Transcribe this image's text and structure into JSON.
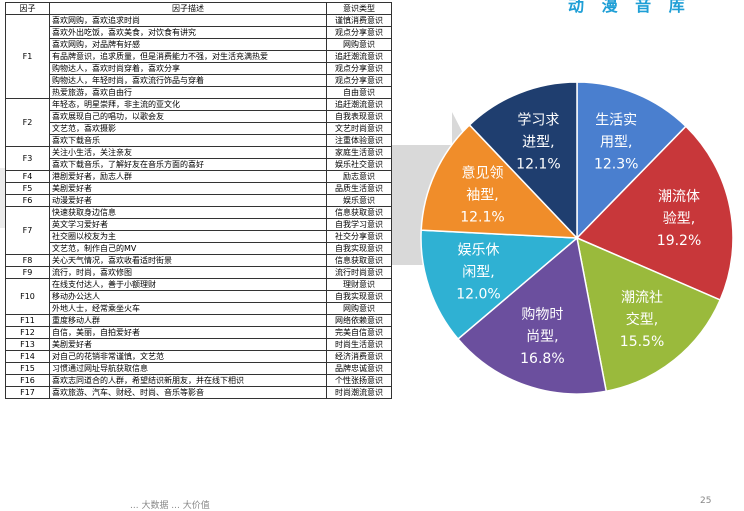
{
  "header": {
    "text": "动 漫 音 库"
  },
  "footer": {
    "left": "... 大数据 ... 大价值",
    "right": "25"
  },
  "table": {
    "headers": [
      "因子",
      "因子描述",
      "意识类型"
    ],
    "groups": [
      {
        "factor": "F1",
        "rows": [
          {
            "desc": "喜欢网购，喜欢追求时尚",
            "type": "谨慎消费意识"
          },
          {
            "desc": "喜欢外出吃饭，喜欢美食，对饮食有讲究",
            "type": "观点分享意识"
          },
          {
            "desc": "喜欢网购，对品牌有好感",
            "type": "网购意识"
          },
          {
            "desc": "有品牌意识，追求质量，但是消费能力不强，对生活充满热爱",
            "type": "追赶潮流意识"
          },
          {
            "desc": "购物达人，喜欢时尚穿着，喜欢分享",
            "type": "观点分享意识"
          },
          {
            "desc": "购物达人，年轻时尚，喜欢流行饰品与穿着",
            "type": "观点分享意识"
          },
          {
            "desc": "热爱旅游，喜欢自由行",
            "type": "自由意识"
          }
        ]
      },
      {
        "factor": "F2",
        "rows": [
          {
            "desc": "年轻态，明星崇拜，非主流的亚文化",
            "type": "追赶潮流意识"
          },
          {
            "desc": "喜欢展现自己的唱功，以歌会友",
            "type": "自我表现意识"
          },
          {
            "desc": "文艺范，喜欢摄影",
            "type": "文艺时尚意识"
          },
          {
            "desc": "喜欢下载音乐",
            "type": "注重体验意识"
          }
        ]
      },
      {
        "factor": "F3",
        "rows": [
          {
            "desc": "关注小生活，关注亲友",
            "type": "家庭生活意识"
          },
          {
            "desc": "喜欢下载音乐，了解好友在音乐方面的喜好",
            "type": "娱乐社交意识"
          }
        ]
      },
      {
        "factor": "F4",
        "rows": [
          {
            "desc": "港剧爱好者，励志人群",
            "type": "励志意识"
          }
        ]
      },
      {
        "factor": "F5",
        "rows": [
          {
            "desc": "美剧爱好者",
            "type": "品质生活意识"
          }
        ]
      },
      {
        "factor": "F6",
        "rows": [
          {
            "desc": "动漫爱好者",
            "type": "娱乐意识"
          }
        ]
      },
      {
        "factor": "F7",
        "rows": [
          {
            "desc": "快速获取身边信息",
            "type": "信息获取意识"
          },
          {
            "desc": "英文学习爱好者",
            "type": "自我学习意识"
          },
          {
            "desc": "社交圈以校友为主",
            "type": "社交分享意识"
          },
          {
            "desc": "文艺范，制作自己的MV",
            "type": "自我实现意识"
          }
        ]
      },
      {
        "factor": "F8",
        "rows": [
          {
            "desc": "关心天气情况，喜欢收看适时街景",
            "type": "信息获取意识"
          }
        ]
      },
      {
        "factor": "F9",
        "rows": [
          {
            "desc": "流行，时尚，喜欢修图",
            "type": "流行时尚意识"
          }
        ]
      },
      {
        "factor": "F10",
        "rows": [
          {
            "desc": "在线支付达人，善于小额理财",
            "type": "理财意识"
          },
          {
            "desc": "移动办公达人",
            "type": "自我实现意识"
          },
          {
            "desc": "外地人士，经常乘坐火车",
            "type": "网购意识"
          }
        ]
      },
      {
        "factor": "F11",
        "rows": [
          {
            "desc": "重度移动人群",
            "type": "网络依赖意识"
          }
        ]
      },
      {
        "factor": "F12",
        "rows": [
          {
            "desc": "自信，美丽，自拍爱好者",
            "type": "完美自信意识"
          }
        ]
      },
      {
        "factor": "F13",
        "rows": [
          {
            "desc": "美剧爱好者",
            "type": "时尚生活意识"
          }
        ]
      },
      {
        "factor": "F14",
        "rows": [
          {
            "desc": "对自己的花销非常谨慎，文艺范",
            "type": "经济消费意识"
          }
        ]
      },
      {
        "factor": "F15",
        "rows": [
          {
            "desc": "习惯通过网址导航获取信息",
            "type": "品牌忠诚意识"
          }
        ]
      },
      {
        "factor": "F16",
        "rows": [
          {
            "desc": "喜欢志同道合的人群，希望结识新朋友，并在线下相识",
            "type": "个性张扬意识"
          }
        ]
      },
      {
        "factor": "F17",
        "rows": [
          {
            "desc": "喜欢旅游、汽车、财经、时尚、音乐等影音",
            "type": "时尚潮流意识"
          }
        ]
      }
    ]
  },
  "chart_data": {
    "type": "pie",
    "start": "top, clockwise",
    "slices": [
      {
        "label_lines": [
          "生活实",
          "用型,",
          "12.3%"
        ],
        "value": 12.3,
        "color": "#4a7fcf"
      },
      {
        "label_lines": [
          "潮流体",
          "验型,",
          "19.2%"
        ],
        "value": 19.2,
        "color": "#c8373a"
      },
      {
        "label_lines": [
          "潮流社",
          "交型,",
          "15.5%"
        ],
        "value": 15.5,
        "color": "#9aba3c"
      },
      {
        "label_lines": [
          "购物时",
          "尚型,",
          "16.8%"
        ],
        "value": 16.8,
        "color": "#6b4f9e"
      },
      {
        "label_lines": [
          "娱乐休",
          "闲型,",
          "12.0%"
        ],
        "value": 12.0,
        "color": "#2fb1d3"
      },
      {
        "label_lines": [
          "意见领",
          "袖型,",
          "12.1%"
        ],
        "value": 12.1,
        "color": "#f08d2a"
      },
      {
        "label_lines": [
          "学习求",
          "进型,",
          "12.1%"
        ],
        "value": 12.1,
        "color": "#1f3e6f"
      }
    ]
  }
}
